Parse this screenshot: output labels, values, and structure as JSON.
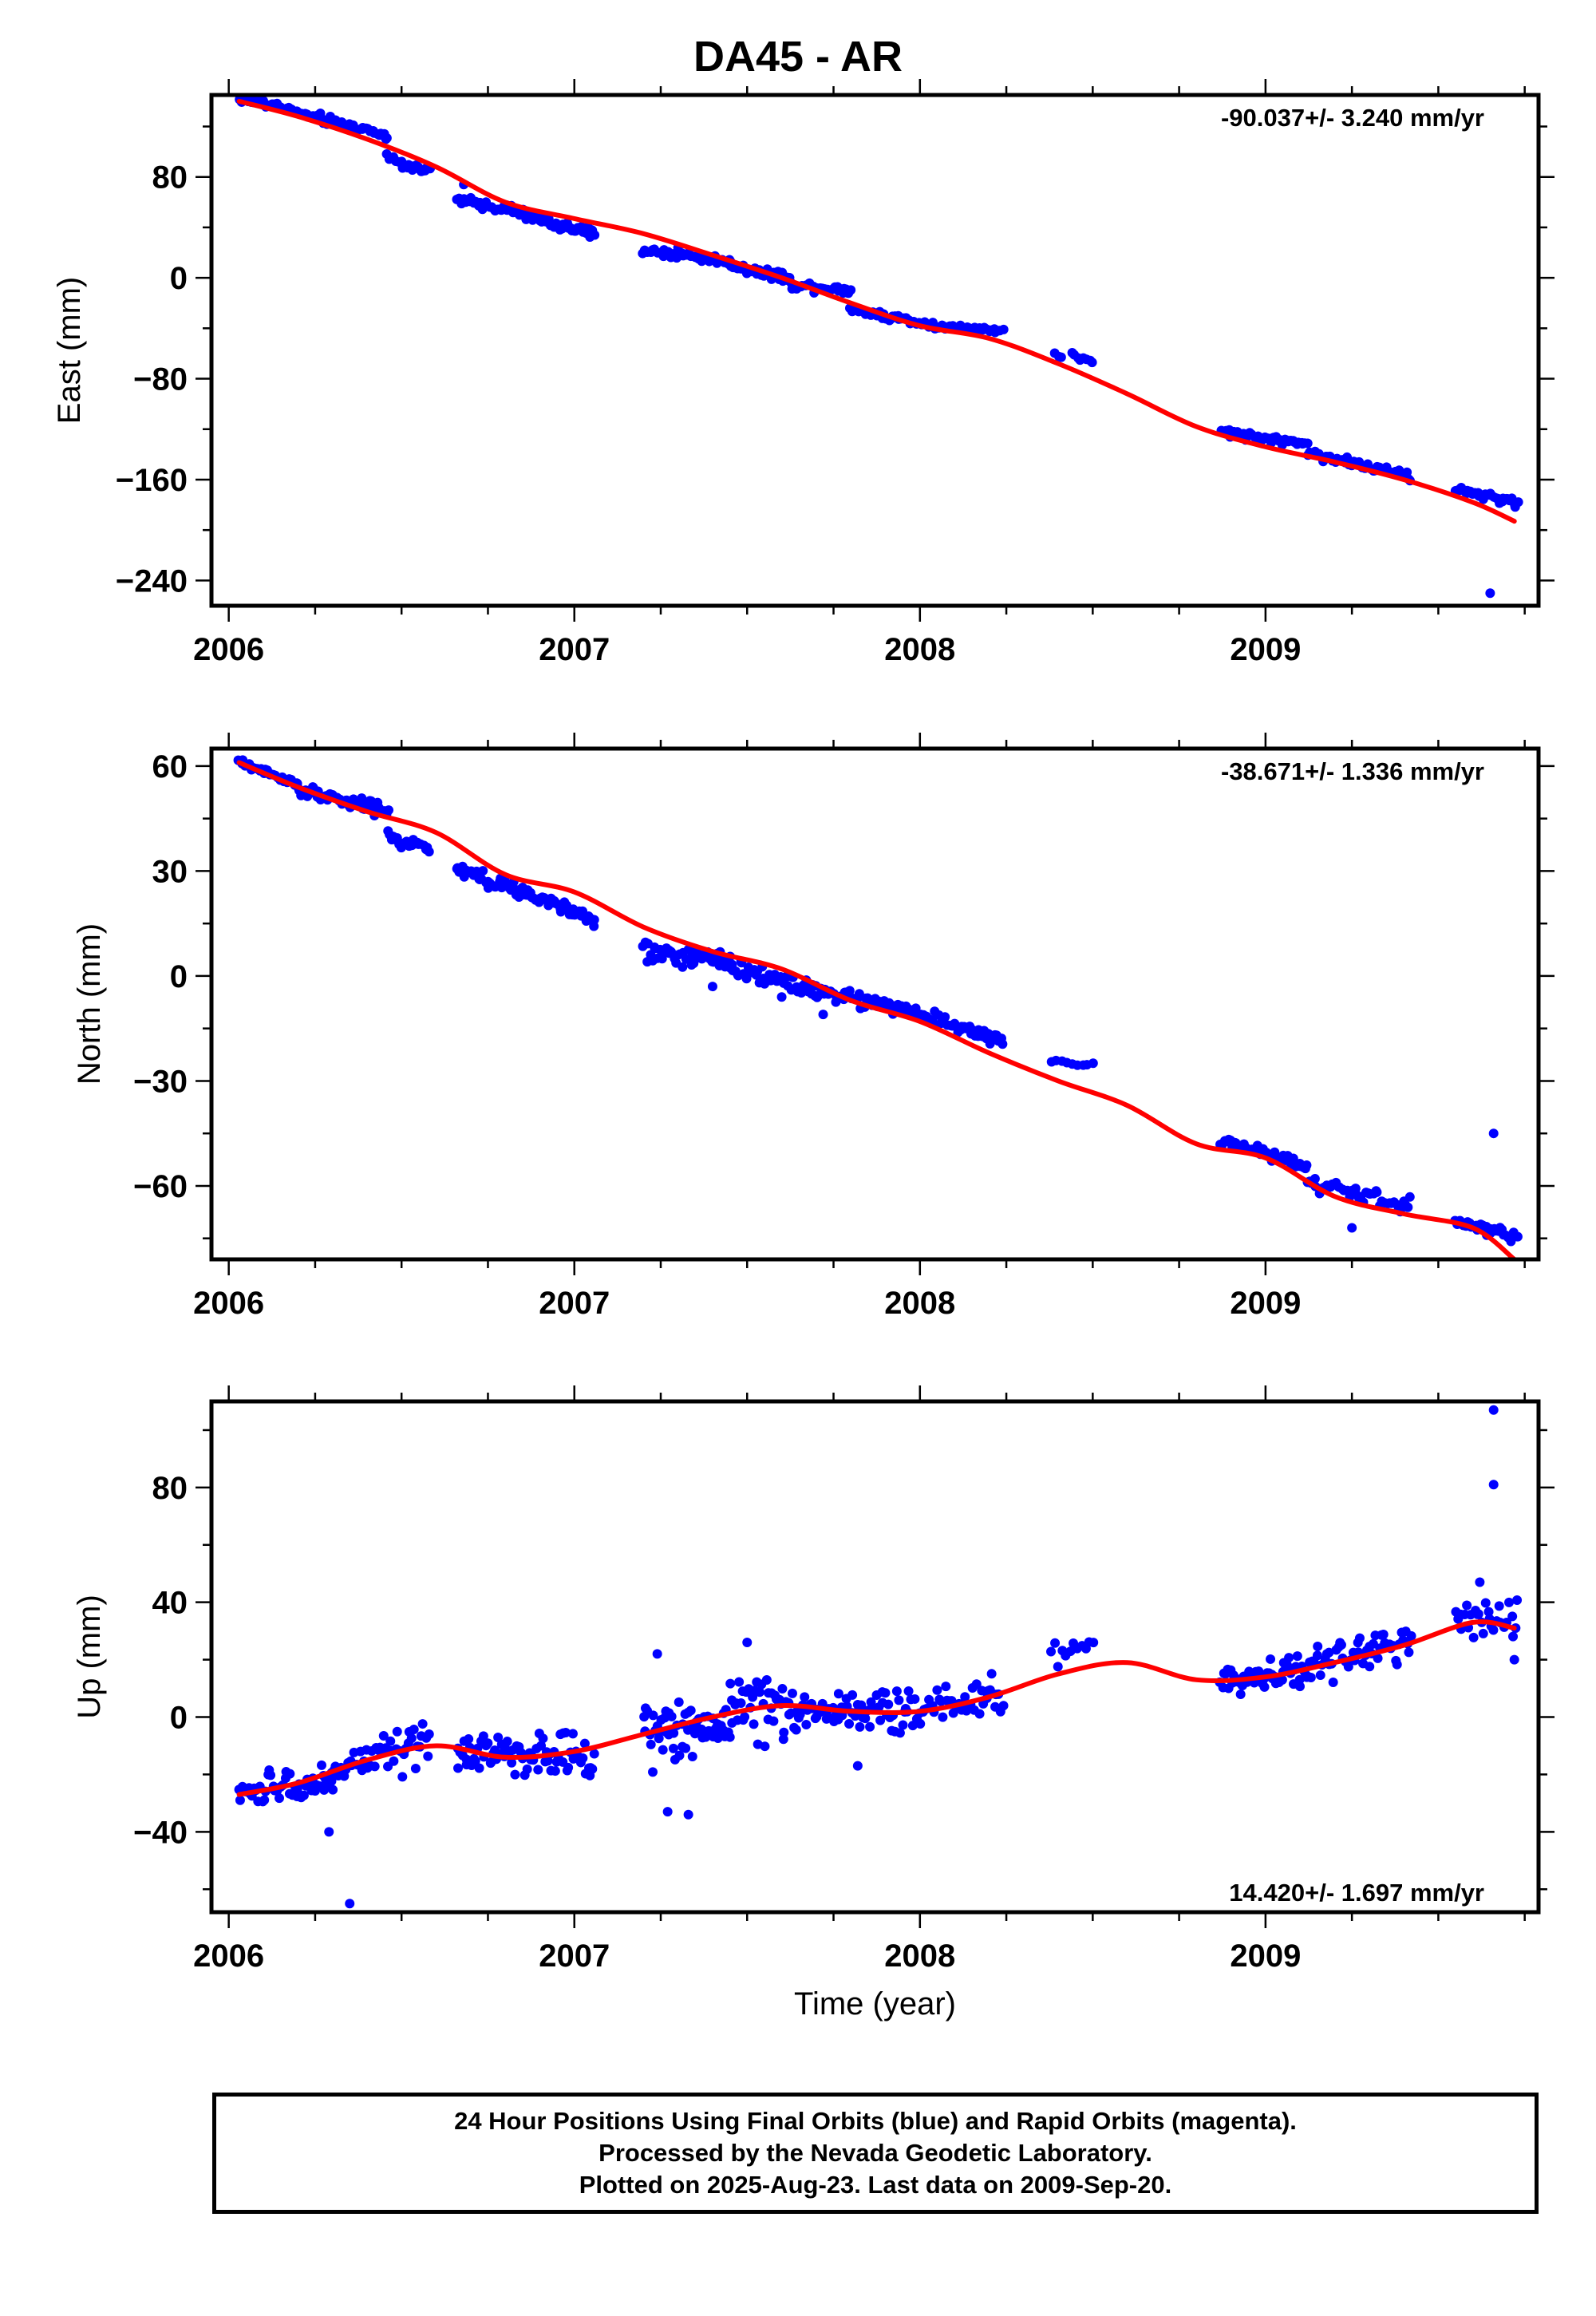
{
  "page": {
    "title": "DA45 - AR"
  },
  "colors": {
    "final_orbits": "#0000ff",
    "fit": "#ff0000",
    "frame": "#000000"
  },
  "footer": {
    "line1": "24 Hour Positions Using Final Orbits (blue) and Rapid Orbits (magenta).",
    "line2": "Processed by the Nevada Geodetic Laboratory.",
    "line3": "Plotted on 2025-Aug-23. Last data on 2009-Sep-20."
  },
  "chart_data": [
    {
      "type": "scatter",
      "ylabel": "East (mm)",
      "xlabel": "",
      "rate_label": "-90.037+/- 3.240 mm/yr",
      "xlim": [
        2005.95,
        2009.79
      ],
      "ylim": [
        -260,
        145
      ],
      "xticks": [
        2006,
        2007,
        2008,
        2009
      ],
      "xtick_labels": [
        "2006",
        "2007",
        "2008",
        "2009"
      ],
      "yticks": [
        80,
        0,
        -80,
        -160,
        -240
      ],
      "ytick_labels": [
        "80",
        "0",
        "−80",
        "−160",
        "−240"
      ],
      "fit_line": {
        "x": [
          2006.03,
          2006.2,
          2006.4,
          2006.6,
          2006.8,
          2007.0,
          2007.2,
          2007.4,
          2007.6,
          2007.8,
          2008.0,
          2008.2,
          2008.4,
          2008.6,
          2008.8,
          2009.0,
          2009.2,
          2009.4,
          2009.6,
          2009.72
        ],
        "y": [
          140,
          128,
          110,
          88,
          60,
          47,
          35,
          18,
          0,
          -20,
          -38,
          -48,
          -68,
          -92,
          -118,
          -134,
          -146,
          -160,
          -178,
          -193
        ]
      },
      "segments": [
        {
          "x0": 2006.03,
          "x1": 2006.18,
          "y0": 142,
          "y1": 134,
          "n": 28,
          "jitter": 2.5
        },
        {
          "x0": 2006.18,
          "x1": 2006.46,
          "y0": 132,
          "y1": 113,
          "n": 45,
          "jitter": 3
        },
        {
          "x0": 2006.46,
          "x1": 2006.58,
          "y0": 95,
          "y1": 84,
          "n": 22,
          "jitter": 3
        },
        {
          "x0": 2006.66,
          "x1": 2006.85,
          "y0": 62,
          "y1": 52,
          "n": 38,
          "jitter": 3
        },
        {
          "x0": 2006.85,
          "x1": 2007.06,
          "y0": 50,
          "y1": 34,
          "n": 40,
          "jitter": 3
        },
        {
          "x0": 2007.2,
          "x1": 2007.45,
          "y0": 22,
          "y1": 13,
          "n": 45,
          "jitter": 3
        },
        {
          "x0": 2007.45,
          "x1": 2007.62,
          "y0": 10,
          "y1": 0,
          "n": 35,
          "jitter": 3
        },
        {
          "x0": 2007.62,
          "x1": 2007.8,
          "y0": -5,
          "y1": -10,
          "n": 32,
          "jitter": 3
        },
        {
          "x0": 2007.8,
          "x1": 2008.05,
          "y0": -25,
          "y1": -38,
          "n": 40,
          "jitter": 2.5
        },
        {
          "x0": 2008.05,
          "x1": 2008.24,
          "y0": -38,
          "y1": -42,
          "n": 30,
          "jitter": 2
        },
        {
          "x0": 2008.39,
          "x1": 2008.41,
          "y0": -61,
          "y1": -62,
          "n": 3,
          "jitter": 1.5
        },
        {
          "x0": 2008.44,
          "x1": 2008.5,
          "y0": -61,
          "y1": -68,
          "n": 8,
          "jitter": 2
        },
        {
          "x0": 2008.87,
          "x1": 2009.12,
          "y0": -122,
          "y1": -132,
          "n": 45,
          "jitter": 2.5
        },
        {
          "x0": 2009.12,
          "x1": 2009.42,
          "y0": -138,
          "y1": -158,
          "n": 45,
          "jitter": 3
        },
        {
          "x0": 2009.55,
          "x1": 2009.73,
          "y0": -168,
          "y1": -178,
          "n": 32,
          "jitter": 3
        }
      ],
      "outliers": [
        {
          "x": 2009.65,
          "y": -250
        },
        {
          "x": 2009.66,
          "y": -264
        },
        {
          "x": 2006.68,
          "y": 74
        },
        {
          "x": 2007.3,
          "y": 24
        }
      ]
    },
    {
      "type": "scatter",
      "ylabel": "North (mm)",
      "xlabel": "",
      "rate_label": "-38.671+/- 1.336 mm/yr",
      "xlim": [
        2005.95,
        2009.79
      ],
      "ylim": [
        -81,
        65
      ],
      "xticks": [
        2006,
        2007,
        2008,
        2009
      ],
      "xtick_labels": [
        "2006",
        "2007",
        "2008",
        "2009"
      ],
      "yticks": [
        60,
        30,
        0,
        -30,
        -60
      ],
      "ytick_labels": [
        "60",
        "30",
        "0",
        "−30",
        "−60"
      ],
      "fit_line": {
        "x": [
          2006.03,
          2006.2,
          2006.4,
          2006.6,
          2006.8,
          2007.0,
          2007.2,
          2007.4,
          2007.6,
          2007.8,
          2008.0,
          2008.2,
          2008.4,
          2008.6,
          2008.8,
          2009.0,
          2009.2,
          2009.4,
          2009.6,
          2009.72
        ],
        "y": [
          61,
          54,
          47,
          41,
          29,
          24,
          14,
          7,
          2,
          -7,
          -13,
          -22,
          -30,
          -37,
          -48,
          -52,
          -63,
          -68,
          -72,
          -81
        ]
      },
      "segments": [
        {
          "x0": 2006.03,
          "x1": 2006.2,
          "y0": 61,
          "y1": 55,
          "n": 30,
          "jitter": 1
        },
        {
          "x0": 2006.2,
          "x1": 2006.46,
          "y0": 53,
          "y1": 47,
          "n": 45,
          "jitter": 1.8
        },
        {
          "x0": 2006.46,
          "x1": 2006.58,
          "y0": 40,
          "y1": 36,
          "n": 22,
          "jitter": 1.5
        },
        {
          "x0": 2006.66,
          "x1": 2006.85,
          "y0": 30,
          "y1": 24,
          "n": 40,
          "jitter": 2
        },
        {
          "x0": 2006.85,
          "x1": 2007.06,
          "y0": 24,
          "y1": 16,
          "n": 38,
          "jitter": 1.5
        },
        {
          "x0": 2007.2,
          "x1": 2007.45,
          "y0": 7,
          "y1": 4,
          "n": 50,
          "jitter": 2.5
        },
        {
          "x0": 2007.45,
          "x1": 2007.7,
          "y0": 3,
          "y1": -4,
          "n": 50,
          "jitter": 2.5
        },
        {
          "x0": 2007.7,
          "x1": 2008.0,
          "y0": -4,
          "y1": -11,
          "n": 55,
          "jitter": 1.8
        },
        {
          "x0": 2008.0,
          "x1": 2008.24,
          "y0": -11,
          "y1": -19,
          "n": 40,
          "jitter": 1.5
        },
        {
          "x0": 2008.38,
          "x1": 2008.5,
          "y0": -25,
          "y1": -25,
          "n": 9,
          "jitter": 1
        },
        {
          "x0": 2008.87,
          "x1": 2009.12,
          "y0": -47,
          "y1": -54,
          "n": 45,
          "jitter": 1.3
        },
        {
          "x0": 2009.12,
          "x1": 2009.42,
          "y0": -59,
          "y1": -66,
          "n": 45,
          "jitter": 1.8
        },
        {
          "x0": 2009.55,
          "x1": 2009.73,
          "y0": -70,
          "y1": -75,
          "n": 32,
          "jitter": 1.3
        }
      ],
      "outliers": [
        {
          "x": 2009.66,
          "y": -45
        },
        {
          "x": 2009.25,
          "y": -72
        },
        {
          "x": 2007.6,
          "y": -6
        },
        {
          "x": 2007.72,
          "y": -11
        },
        {
          "x": 2007.4,
          "y": -3
        }
      ]
    },
    {
      "type": "scatter",
      "ylabel": "Up (mm)",
      "xlabel": "Time (year)",
      "rate_label": "14.420+/- 1.697 mm/yr",
      "xlim": [
        2005.95,
        2009.79
      ],
      "ylim": [
        -68,
        110
      ],
      "xticks": [
        2006,
        2007,
        2008,
        2009
      ],
      "xtick_labels": [
        "2006",
        "2007",
        "2008",
        "2009"
      ],
      "yticks": [
        80,
        40,
        0,
        -40
      ],
      "ytick_labels": [
        "80",
        "40",
        "0",
        "−40"
      ],
      "fit_line": {
        "x": [
          2006.03,
          2006.2,
          2006.4,
          2006.6,
          2006.8,
          2007.0,
          2007.2,
          2007.4,
          2007.6,
          2007.8,
          2008.0,
          2008.2,
          2008.4,
          2008.6,
          2008.8,
          2009.0,
          2009.2,
          2009.4,
          2009.6,
          2009.72
        ],
        "y": [
          -27,
          -23,
          -15,
          -10,
          -14,
          -12,
          -6,
          0,
          4,
          2,
          2,
          7,
          15,
          19,
          13,
          14,
          19,
          25,
          33,
          31
        ]
      },
      "segments": [
        {
          "x0": 2006.03,
          "x1": 2006.3,
          "y0": -27,
          "y1": -22,
          "n": 50,
          "jitter": 5
        },
        {
          "x0": 2006.3,
          "x1": 2006.58,
          "y0": -18,
          "y1": -10,
          "n": 50,
          "jitter": 6
        },
        {
          "x0": 2006.66,
          "x1": 2007.06,
          "y0": -13,
          "y1": -13,
          "n": 80,
          "jitter": 6
        },
        {
          "x0": 2007.2,
          "x1": 2007.45,
          "y0": -7,
          "y1": -1,
          "n": 60,
          "jitter": 9
        },
        {
          "x0": 2007.45,
          "x1": 2007.65,
          "y0": 4,
          "y1": 3,
          "n": 45,
          "jitter": 9
        },
        {
          "x0": 2007.65,
          "x1": 2008.0,
          "y0": 2,
          "y1": 2,
          "n": 70,
          "jitter": 6
        },
        {
          "x0": 2008.0,
          "x1": 2008.24,
          "y0": 4,
          "y1": 8,
          "n": 40,
          "jitter": 6
        },
        {
          "x0": 2008.38,
          "x1": 2008.5,
          "y0": 22,
          "y1": 26,
          "n": 12,
          "jitter": 4
        },
        {
          "x0": 2008.87,
          "x1": 2009.12,
          "y0": 13,
          "y1": 16,
          "n": 55,
          "jitter": 4
        },
        {
          "x0": 2009.12,
          "x1": 2009.42,
          "y0": 18,
          "y1": 26,
          "n": 55,
          "jitter": 5
        },
        {
          "x0": 2009.55,
          "x1": 2009.73,
          "y0": 34,
          "y1": 33,
          "n": 30,
          "jitter": 6
        }
      ],
      "outliers": [
        {
          "x": 2009.66,
          "y": 107
        },
        {
          "x": 2009.66,
          "y": 81
        },
        {
          "x": 2006.35,
          "y": -65
        },
        {
          "x": 2006.29,
          "y": -40
        },
        {
          "x": 2007.33,
          "y": -34
        },
        {
          "x": 2007.27,
          "y": -33
        },
        {
          "x": 2007.24,
          "y": 22
        },
        {
          "x": 2007.5,
          "y": 26
        },
        {
          "x": 2007.82,
          "y": -17
        },
        {
          "x": 2009.72,
          "y": 20
        },
        {
          "x": 2009.62,
          "y": 47
        }
      ]
    }
  ]
}
